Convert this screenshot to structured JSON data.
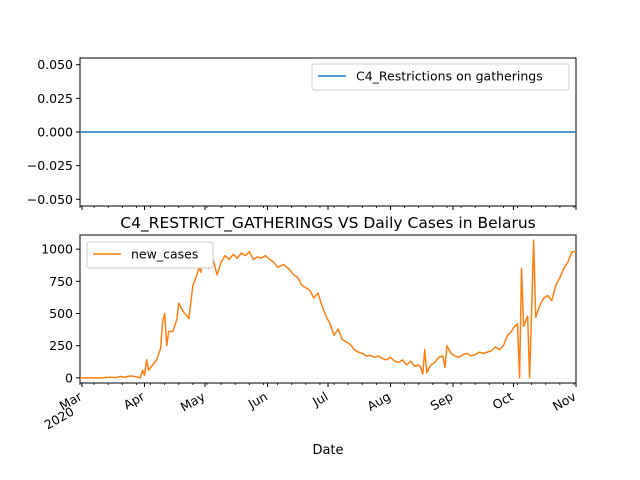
{
  "chart_data": [
    {
      "type": "line",
      "title": "",
      "xlabel": "",
      "ylabel": "",
      "ylim": [
        -0.055,
        0.055
      ],
      "yticks": [
        "0.050",
        "0.025",
        "0.000",
        "−0.025",
        "−0.050"
      ],
      "legend": {
        "placement": "top-right",
        "entries": [
          "C4_Restrictions on gatherings"
        ]
      },
      "grid": false,
      "series": [
        {
          "name": "C4_Restrictions on gatherings",
          "color": "#1f77b4",
          "x": [
            "2020-02-29",
            "2020-11-01"
          ],
          "y": [
            0,
            0
          ]
        }
      ]
    },
    {
      "type": "line",
      "title": "C4_RESTRICT_GATHERINGS VS Daily Cases in Belarus",
      "xlabel": "Date",
      "ylabel": "",
      "ylim": [
        -40,
        1110
      ],
      "yticks": [
        "0",
        "250",
        "500",
        "750",
        "1000"
      ],
      "xlim": [
        "2020-02-29",
        "2020-11-01"
      ],
      "xticks": [
        {
          "date": "2020-03-01",
          "label": "Mar",
          "sublabel": "2020"
        },
        {
          "date": "2020-04-01",
          "label": "Apr"
        },
        {
          "date": "2020-05-01",
          "label": "May"
        },
        {
          "date": "2020-06-01",
          "label": "Jun"
        },
        {
          "date": "2020-07-01",
          "label": "Jul"
        },
        {
          "date": "2020-08-01",
          "label": "Aug"
        },
        {
          "date": "2020-09-01",
          "label": "Sep"
        },
        {
          "date": "2020-10-01",
          "label": "Oct"
        },
        {
          "date": "2020-11-01",
          "label": "Nov"
        }
      ],
      "legend": {
        "placement": "top-left",
        "entries": [
          "new_cases"
        ]
      },
      "grid": false,
      "series": [
        {
          "name": "new_cases",
          "color": "#ff7f0e",
          "points": [
            [
              "2020-02-29",
              0
            ],
            [
              "2020-03-10",
              0
            ],
            [
              "2020-03-15",
              5
            ],
            [
              "2020-03-18",
              2
            ],
            [
              "2020-03-20",
              12
            ],
            [
              "2020-03-22",
              5
            ],
            [
              "2020-03-25",
              15
            ],
            [
              "2020-03-28",
              8
            ],
            [
              "2020-03-30",
              0
            ],
            [
              "2020-03-31",
              60
            ],
            [
              "2020-04-01",
              20
            ],
            [
              "2020-04-02",
              140
            ],
            [
              "2020-04-03",
              60
            ],
            [
              "2020-04-05",
              100
            ],
            [
              "2020-04-07",
              140
            ],
            [
              "2020-04-09",
              230
            ],
            [
              "2020-04-10",
              440
            ],
            [
              "2020-04-11",
              500
            ],
            [
              "2020-04-12",
              250
            ],
            [
              "2020-04-13",
              360
            ],
            [
              "2020-04-15",
              360
            ],
            [
              "2020-04-17",
              450
            ],
            [
              "2020-04-18",
              580
            ],
            [
              "2020-04-20",
              520
            ],
            [
              "2020-04-22",
              480
            ],
            [
              "2020-04-23",
              460
            ],
            [
              "2020-04-25",
              720
            ],
            [
              "2020-04-27",
              800
            ],
            [
              "2020-04-28",
              860
            ],
            [
              "2020-04-29",
              820
            ],
            [
              "2020-04-30",
              940
            ],
            [
              "2020-05-01",
              980
            ],
            [
              "2020-05-02",
              900
            ],
            [
              "2020-05-03",
              850
            ],
            [
              "2020-05-05",
              920
            ],
            [
              "2020-05-07",
              800
            ],
            [
              "2020-05-09",
              900
            ],
            [
              "2020-05-11",
              950
            ],
            [
              "2020-05-13",
              920
            ],
            [
              "2020-05-15",
              960
            ],
            [
              "2020-05-17",
              930
            ],
            [
              "2020-05-19",
              970
            ],
            [
              "2020-05-21",
              950
            ],
            [
              "2020-05-23",
              980
            ],
            [
              "2020-05-25",
              920
            ],
            [
              "2020-05-27",
              940
            ],
            [
              "2020-05-29",
              930
            ],
            [
              "2020-05-31",
              950
            ],
            [
              "2020-06-02",
              920
            ],
            [
              "2020-06-04",
              900
            ],
            [
              "2020-06-06",
              860
            ],
            [
              "2020-06-09",
              880
            ],
            [
              "2020-06-12",
              840
            ],
            [
              "2020-06-14",
              800
            ],
            [
              "2020-06-16",
              780
            ],
            [
              "2020-06-18",
              720
            ],
            [
              "2020-06-20",
              700
            ],
            [
              "2020-06-22",
              680
            ],
            [
              "2020-06-24",
              620
            ],
            [
              "2020-06-26",
              660
            ],
            [
              "2020-06-28",
              560
            ],
            [
              "2020-06-30",
              480
            ],
            [
              "2020-07-02",
              420
            ],
            [
              "2020-07-04",
              330
            ],
            [
              "2020-07-06",
              380
            ],
            [
              "2020-07-08",
              300
            ],
            [
              "2020-07-10",
              280
            ],
            [
              "2020-07-12",
              260
            ],
            [
              "2020-07-14",
              220
            ],
            [
              "2020-07-16",
              200
            ],
            [
              "2020-07-18",
              190
            ],
            [
              "2020-07-20",
              170
            ],
            [
              "2020-07-22",
              175
            ],
            [
              "2020-07-24",
              160
            ],
            [
              "2020-07-26",
              170
            ],
            [
              "2020-07-28",
              150
            ],
            [
              "2020-07-30",
              140
            ],
            [
              "2020-08-01",
              160
            ],
            [
              "2020-08-03",
              130
            ],
            [
              "2020-08-05",
              120
            ],
            [
              "2020-08-07",
              140
            ],
            [
              "2020-08-09",
              100
            ],
            [
              "2020-08-11",
              130
            ],
            [
              "2020-08-13",
              90
            ],
            [
              "2020-08-15",
              100
            ],
            [
              "2020-08-16",
              80
            ],
            [
              "2020-08-17",
              30
            ],
            [
              "2020-08-18",
              220
            ],
            [
              "2020-08-19",
              40
            ],
            [
              "2020-08-21",
              100
            ],
            [
              "2020-08-23",
              120
            ],
            [
              "2020-08-25",
              160
            ],
            [
              "2020-08-27",
              170
            ],
            [
              "2020-08-28",
              80
            ],
            [
              "2020-08-29",
              250
            ],
            [
              "2020-08-31",
              190
            ],
            [
              "2020-09-02",
              170
            ],
            [
              "2020-09-04",
              160
            ],
            [
              "2020-09-06",
              180
            ],
            [
              "2020-09-08",
              190
            ],
            [
              "2020-09-10",
              170
            ],
            [
              "2020-09-12",
              180
            ],
            [
              "2020-09-14",
              200
            ],
            [
              "2020-09-16",
              190
            ],
            [
              "2020-09-18",
              200
            ],
            [
              "2020-09-20",
              210
            ],
            [
              "2020-09-22",
              240
            ],
            [
              "2020-09-24",
              220
            ],
            [
              "2020-09-26",
              250
            ],
            [
              "2020-09-28",
              330
            ],
            [
              "2020-09-30",
              360
            ],
            [
              "2020-10-01",
              390
            ],
            [
              "2020-10-03",
              420
            ],
            [
              "2020-10-04",
              0
            ],
            [
              "2020-10-05",
              850
            ],
            [
              "2020-10-06",
              400
            ],
            [
              "2020-10-08",
              480
            ],
            [
              "2020-10-09",
              0
            ],
            [
              "2020-10-11",
              1070
            ],
            [
              "2020-10-12",
              470
            ],
            [
              "2020-10-14",
              560
            ],
            [
              "2020-10-16",
              620
            ],
            [
              "2020-10-18",
              640
            ],
            [
              "2020-10-20",
              600
            ],
            [
              "2020-10-22",
              720
            ],
            [
              "2020-10-24",
              780
            ],
            [
              "2020-10-26",
              850
            ],
            [
              "2020-10-28",
              900
            ],
            [
              "2020-10-30",
              980
            ],
            [
              "2020-11-01",
              980
            ]
          ]
        }
      ]
    }
  ]
}
